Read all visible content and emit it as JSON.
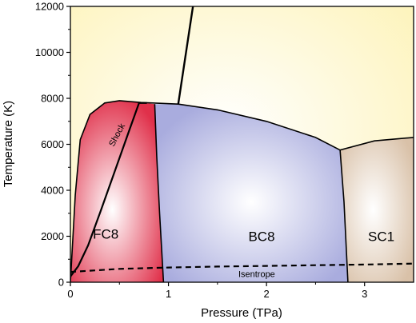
{
  "chart_data": {
    "type": "phase-diagram",
    "xlabel": "Pressure (TPa)",
    "ylabel": "Temperature (K)",
    "xlim": [
      0,
      3.5
    ],
    "ylim": [
      0,
      12000
    ],
    "x_ticks": [
      0,
      1,
      2,
      3
    ],
    "y_ticks": [
      0,
      2000,
      4000,
      6000,
      8000,
      10000,
      12000
    ],
    "grid": false,
    "colors": {
      "liquid": "#fdf3b8",
      "fc8": "#e0304a",
      "bc8": "#a9acde",
      "sc1": "#d9c1a8"
    },
    "regions": [
      {
        "key": "fc8",
        "label": "FC8",
        "label_at": [
          0.36,
          1900
        ],
        "boundary": [
          [
            0,
            0
          ],
          [
            0.05,
            3800
          ],
          [
            0.1,
            6200
          ],
          [
            0.2,
            7300
          ],
          [
            0.35,
            7800
          ],
          [
            0.5,
            7900
          ],
          [
            0.72,
            7820
          ],
          [
            0.86,
            7750
          ],
          [
            0.88,
            5500
          ],
          [
            0.91,
            3000
          ],
          [
            0.95,
            0
          ]
        ]
      },
      {
        "key": "bc8",
        "label": "BC8",
        "label_at": [
          1.95,
          1800
        ],
        "boundary": [
          [
            0.95,
            0
          ],
          [
            0.91,
            3000
          ],
          [
            0.88,
            5500
          ],
          [
            0.86,
            7750
          ],
          [
            1.1,
            7750
          ],
          [
            1.5,
            7500
          ],
          [
            2.0,
            7000
          ],
          [
            2.5,
            6300
          ],
          [
            2.75,
            5750
          ],
          [
            2.79,
            3500
          ],
          [
            2.83,
            0
          ]
        ]
      },
      {
        "key": "sc1",
        "label": "SC1",
        "label_at": [
          3.17,
          1800
        ],
        "boundary": [
          [
            2.83,
            0
          ],
          [
            2.79,
            3500
          ],
          [
            2.75,
            5750
          ],
          [
            3.1,
            6150
          ],
          [
            3.5,
            6300
          ],
          [
            3.5,
            0
          ]
        ]
      }
    ],
    "melting_line": [
      [
        0,
        0
      ],
      [
        0.05,
        3800
      ],
      [
        0.1,
        6200
      ],
      [
        0.2,
        7300
      ],
      [
        0.35,
        7800
      ],
      [
        0.5,
        7900
      ],
      [
        0.72,
        7820
      ],
      [
        1.1,
        7750
      ],
      [
        1.5,
        7500
      ],
      [
        2.0,
        7000
      ],
      [
        2.5,
        6300
      ],
      [
        2.75,
        5750
      ],
      [
        3.1,
        6150
      ],
      [
        3.5,
        6300
      ]
    ],
    "phase_boundaries": [
      [
        [
          0.86,
          7750
        ],
        [
          0.88,
          5500
        ],
        [
          0.91,
          3000
        ],
        [
          0.95,
          0
        ]
      ],
      [
        [
          2.75,
          5750
        ],
        [
          2.79,
          3500
        ],
        [
          2.83,
          0
        ]
      ],
      [
        [
          1.1,
          7750
        ],
        [
          1.25,
          12000
        ]
      ]
    ],
    "series": [
      {
        "name": "Shock",
        "style": "solid",
        "label_at": [
          0.5,
          6350
        ],
        "points": [
          [
            0,
            250
          ],
          [
            0.08,
            700
          ],
          [
            0.18,
            1600
          ],
          [
            0.3,
            3000
          ],
          [
            0.45,
            4800
          ],
          [
            0.6,
            6600
          ],
          [
            0.7,
            7800
          ],
          [
            0.78,
            7800
          ]
        ]
      },
      {
        "name": "Isentrope",
        "style": "dashed",
        "label_at": [
          1.9,
          230
        ],
        "points": [
          [
            0,
            450
          ],
          [
            0.5,
            580
          ],
          [
            1.0,
            640
          ],
          [
            1.5,
            680
          ],
          [
            2.0,
            710
          ],
          [
            2.5,
            740
          ],
          [
            3.0,
            770
          ],
          [
            3.5,
            810
          ]
        ]
      }
    ]
  }
}
